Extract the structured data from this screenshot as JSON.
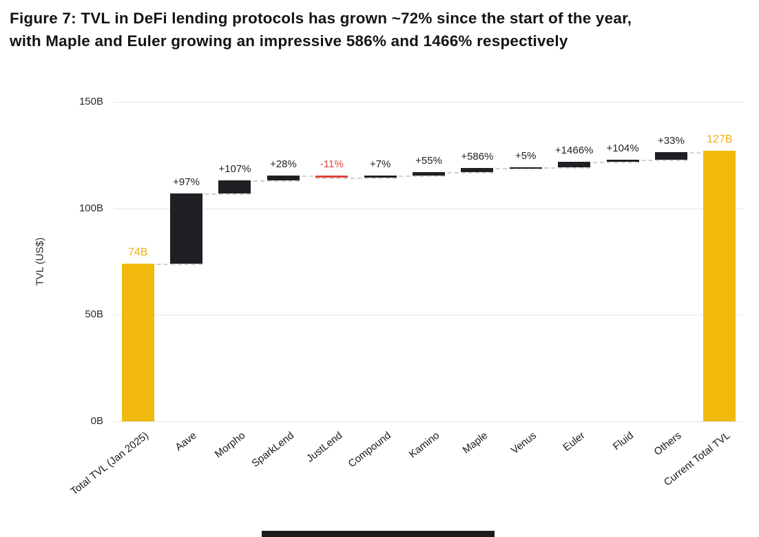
{
  "title": {
    "line1": "Figure 7: TVL in DeFi lending protocols has grown ~72% since the start of the year,",
    "line2": "with Maple and Euler growing an impressive 586% and 1466% respectively"
  },
  "chart_data": {
    "type": "bar",
    "subtype": "waterfall",
    "title": "TVL in DeFi lending protocols",
    "xlabel": "",
    "ylabel": "TVL (US$)",
    "ylim": [
      0,
      150
    ],
    "grid": "horizontal",
    "y_ticks": [
      {
        "value": 0,
        "label": "0B"
      },
      {
        "value": 50,
        "label": "50B"
      },
      {
        "value": 100,
        "label": "100B"
      },
      {
        "value": 150,
        "label": "150B"
      }
    ],
    "colors": {
      "total": "#F0B90B",
      "increase": "#1F2023",
      "decrease": "#E2453C",
      "total_label": "#EFB00F",
      "increase_label": "#1F2023",
      "decrease_label": "#E2453C",
      "connector": "#CFCFCF",
      "grid": "#E4E4E4"
    },
    "bars": [
      {
        "category": "Total TVL (Jan 2025)",
        "kind": "total",
        "start": 0,
        "end": 74,
        "label": "74B"
      },
      {
        "category": "Aave",
        "kind": "increase",
        "start": 74,
        "end": 107,
        "label": "+97%"
      },
      {
        "category": "Morpho",
        "kind": "increase",
        "start": 107,
        "end": 113,
        "label": "+107%"
      },
      {
        "category": "SparkLend",
        "kind": "increase",
        "start": 113,
        "end": 115.5,
        "label": "+28%"
      },
      {
        "category": "JustLend",
        "kind": "decrease",
        "start": 115.5,
        "end": 114.5,
        "label": "-11%"
      },
      {
        "category": "Compound",
        "kind": "increase",
        "start": 114.5,
        "end": 115.3,
        "label": "+7%"
      },
      {
        "category": "Kamino",
        "kind": "increase",
        "start": 115.3,
        "end": 116.9,
        "label": "+55%"
      },
      {
        "category": "Maple",
        "kind": "increase",
        "start": 116.9,
        "end": 119,
        "label": "+586%"
      },
      {
        "category": "Venus",
        "kind": "increase",
        "start": 119,
        "end": 119.4,
        "label": "+5%"
      },
      {
        "category": "Euler",
        "kind": "increase",
        "start": 119.4,
        "end": 121.9,
        "label": "+1466%"
      },
      {
        "category": "Fluid",
        "kind": "increase",
        "start": 121.9,
        "end": 123,
        "label": "+104%"
      },
      {
        "category": "Others",
        "kind": "increase",
        "start": 123,
        "end": 126.5,
        "label": "+33%"
      },
      {
        "category": "Current Total TVL",
        "kind": "total",
        "start": 0,
        "end": 127,
        "label": "127B"
      }
    ]
  }
}
